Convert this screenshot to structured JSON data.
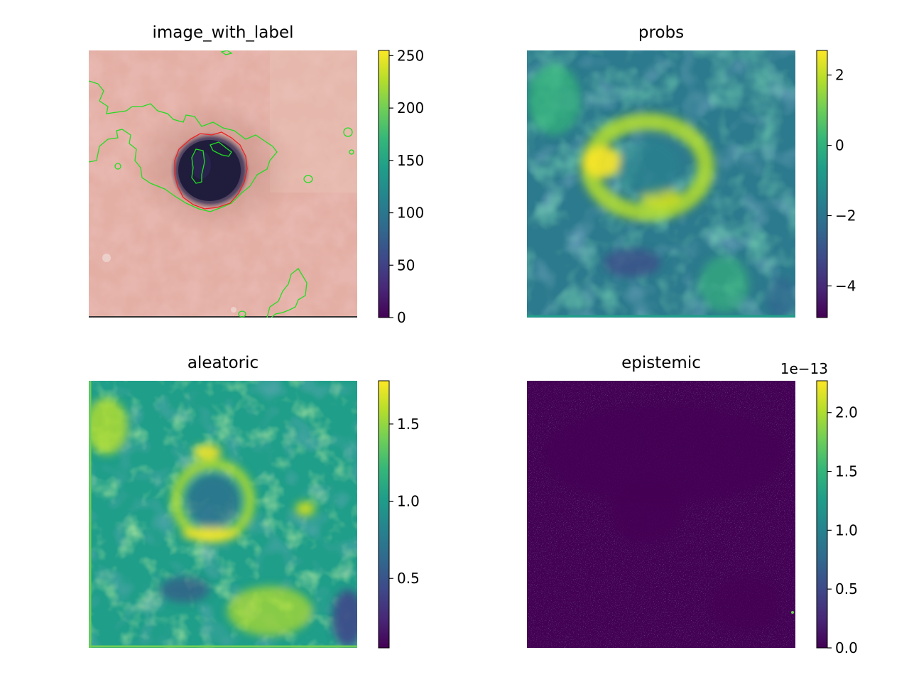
{
  "figure": {
    "colormap": "viridis",
    "colorbar_stops": [
      "#440154",
      "#482878",
      "#3e4989",
      "#31688e",
      "#26828e",
      "#1f9e89",
      "#35b779",
      "#6ece58",
      "#b5de2b",
      "#fde725"
    ],
    "contour_colors": {
      "green": "#22dd22",
      "red": "#ee2222"
    }
  },
  "chart_data": [
    {
      "type": "heatmap",
      "title": "image_with_label",
      "image_kind": "dermoscopy RGB image with green and red label contours",
      "colorbar": {
        "ticks": [
          0,
          50,
          100,
          150,
          200,
          250
        ],
        "tick_labels": [
          "0",
          "50",
          "100",
          "150",
          "200",
          "250"
        ],
        "range": [
          0,
          255
        ],
        "offset_label": ""
      }
    },
    {
      "type": "heatmap",
      "title": "probs",
      "image_kind": "viridis map; ring-shaped high values around the lesion",
      "colorbar": {
        "ticks": [
          -4,
          -2,
          0,
          2
        ],
        "tick_labels": [
          "−4",
          "−2",
          "0",
          "2"
        ],
        "range": [
          -4.9,
          2.7
        ],
        "offset_label": ""
      }
    },
    {
      "type": "heatmap",
      "title": "aleatoric",
      "image_kind": "viridis map; bright ring around the lesion, mottled background",
      "colorbar": {
        "ticks": [
          0.5,
          1.0,
          1.5
        ],
        "tick_labels": [
          "0.5",
          "1.0",
          "1.5"
        ],
        "range": [
          0.05,
          1.78
        ],
        "offset_label": ""
      }
    },
    {
      "type": "heatmap",
      "title": "epistemic",
      "image_kind": "viridis map; near-zero dark purple with sparse speckle",
      "colorbar": {
        "ticks": [
          0.0,
          0.5,
          1.0,
          1.5,
          2.0
        ],
        "tick_labels": [
          "0.0",
          "0.5",
          "1.0",
          "1.5",
          "2.0"
        ],
        "range": [
          0,
          2.27
        ],
        "offset_label": "1e−13"
      }
    }
  ]
}
